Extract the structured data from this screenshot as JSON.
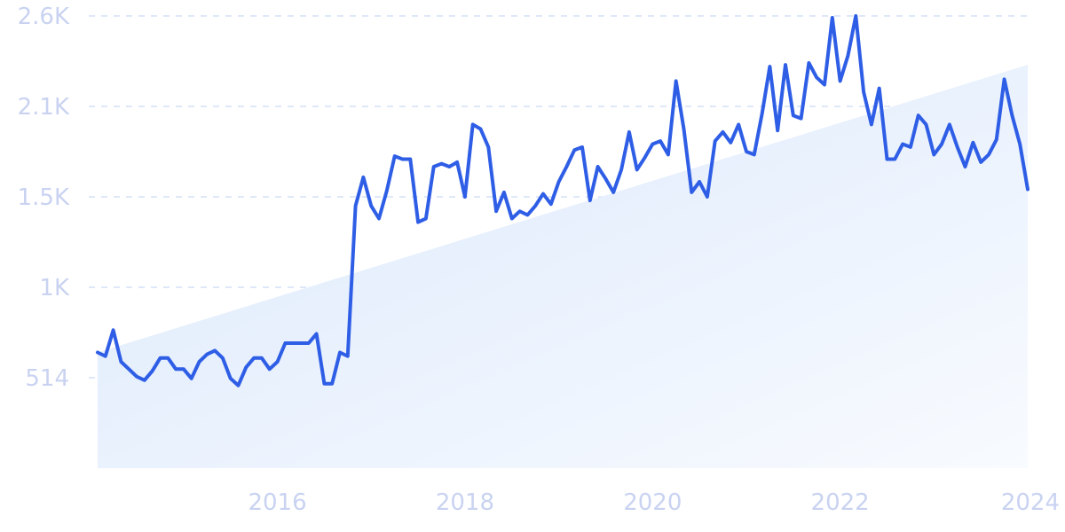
{
  "chart_data": {
    "type": "line",
    "title": "",
    "xlabel": "",
    "ylabel": "",
    "grid": true,
    "legend": "none",
    "colors": {
      "line": "#2f5ee6",
      "trend_fill_top": "#dbe8fb",
      "trend_fill_bottom": "#f8fbff",
      "grid": "#d4e0f5",
      "tick_text": "#c9d3f1"
    },
    "xlim": [
      "2014-02",
      "2024-01"
    ],
    "ylim": [
      0,
      2600
    ],
    "y_ticks": [
      {
        "value": 514,
        "label": "514"
      },
      {
        "value": 1000,
        "label": "1K"
      },
      {
        "value": 1500,
        "label": "1.5K"
      },
      {
        "value": 2100,
        "label": "2.1K"
      },
      {
        "value": 2600,
        "label": "2.6K"
      }
    ],
    "x_ticks": [
      {
        "value": "2016-01",
        "label": "2016"
      },
      {
        "value": "2018-01",
        "label": "2018"
      },
      {
        "value": "2020-01",
        "label": "2020"
      },
      {
        "value": "2022-01",
        "label": "2022"
      },
      {
        "value": "2024-01",
        "label": "2024"
      }
    ],
    "trend": {
      "start": {
        "x": "2014-02",
        "y": 650
      },
      "end": {
        "x": "2024-01",
        "y": 2330
      }
    },
    "series": [
      {
        "name": "",
        "x": [
          "2014-02",
          "2014-03",
          "2014-04",
          "2014-05",
          "2014-06",
          "2014-07",
          "2014-08",
          "2014-09",
          "2014-10",
          "2014-11",
          "2014-12",
          "2015-01",
          "2015-02",
          "2015-03",
          "2015-04",
          "2015-05",
          "2015-06",
          "2015-07",
          "2015-08",
          "2015-09",
          "2015-10",
          "2015-11",
          "2015-12",
          "2016-01",
          "2016-02",
          "2016-03",
          "2016-04",
          "2016-05",
          "2016-06",
          "2016-07",
          "2016-08",
          "2016-09",
          "2016-10",
          "2016-11",
          "2016-12",
          "2017-01",
          "2017-02",
          "2017-03",
          "2017-04",
          "2017-05",
          "2017-06",
          "2017-07",
          "2017-08",
          "2017-09",
          "2017-10",
          "2017-11",
          "2017-12",
          "2018-01",
          "2018-02",
          "2018-03",
          "2018-04",
          "2018-05",
          "2018-06",
          "2018-07",
          "2018-08",
          "2018-09",
          "2018-10",
          "2018-11",
          "2018-12",
          "2019-01",
          "2019-02",
          "2019-03",
          "2019-04",
          "2019-05",
          "2019-06",
          "2019-07",
          "2019-08",
          "2019-09",
          "2019-10",
          "2019-11",
          "2019-12",
          "2020-01",
          "2020-02",
          "2020-03",
          "2020-04",
          "2020-05",
          "2020-06",
          "2020-07",
          "2020-08",
          "2020-09",
          "2020-10",
          "2020-11",
          "2020-12",
          "2021-01",
          "2021-02",
          "2021-03",
          "2021-04",
          "2021-05",
          "2021-06",
          "2021-07",
          "2021-08",
          "2021-09",
          "2021-10",
          "2021-11",
          "2021-12",
          "2022-01",
          "2022-02",
          "2022-03",
          "2022-04",
          "2022-05",
          "2022-06",
          "2022-07",
          "2022-08",
          "2022-09",
          "2022-10",
          "2022-11",
          "2022-12",
          "2023-01",
          "2023-02",
          "2023-03",
          "2023-04",
          "2023-05",
          "2023-06",
          "2023-07",
          "2023-08",
          "2023-09",
          "2023-10",
          "2023-11",
          "2023-12",
          "2024-01"
        ],
        "values": [
          650,
          630,
          770,
          600,
          560,
          520,
          500,
          550,
          620,
          620,
          560,
          560,
          510,
          600,
          640,
          660,
          620,
          510,
          470,
          570,
          620,
          620,
          560,
          600,
          700,
          700,
          700,
          700,
          750,
          480,
          480,
          650,
          630,
          1450,
          1630,
          1450,
          1380,
          1540,
          1770,
          1750,
          1750,
          1360,
          1380,
          1700,
          1720,
          1700,
          1730,
          1500,
          1980,
          1950,
          1830,
          1420,
          1530,
          1380,
          1420,
          1400,
          1450,
          1520,
          1460,
          1600,
          1700,
          1810,
          1830,
          1480,
          1700,
          1620,
          1530,
          1680,
          1930,
          1680,
          1760,
          1850,
          1870,
          1780,
          2240,
          1950,
          1530,
          1600,
          1500,
          1870,
          1930,
          1860,
          1980,
          1800,
          1780,
          2050,
          2320,
          1940,
          2330,
          2040,
          2020,
          2340,
          2260,
          2220,
          2590,
          2240,
          2380,
          2600,
          2180,
          1980,
          2200,
          1750,
          1750,
          1850,
          1830,
          2040,
          1980,
          1780,
          1850,
          1980,
          1830,
          1700,
          1860,
          1730,
          1780,
          1880,
          2250,
          2040,
          1850,
          1550
        ]
      }
    ]
  }
}
